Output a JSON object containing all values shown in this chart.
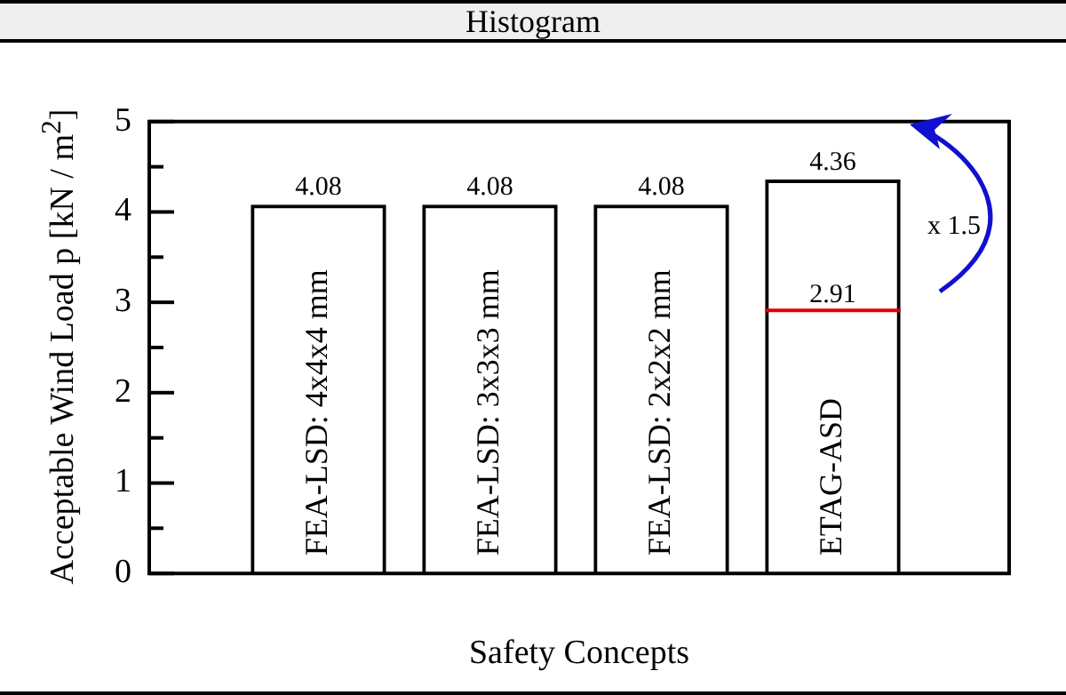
{
  "chart_data": {
    "type": "bar",
    "title": "Histogram",
    "xlabel": "Safety Concepts",
    "ylabel": "Acceptable Wind Load p [kN / m$^{2}$]",
    "categories": [
      "FEA-LSD: 4x4x4 mm",
      "FEA-LSD: 3x3x3 mm",
      "FEA-LSD: 2x2x2 mm",
      "ETAG-ASD"
    ],
    "values": [
      4.08,
      4.08,
      4.08,
      4.36
    ],
    "color": "#000000",
    "data_labels": true,
    "ylim": [
      0,
      5
    ],
    "yticks": [
      0,
      {
        "value": 0.5,
        "label": null
      },
      1,
      {
        "value": 1.5,
        "label": null
      },
      2,
      {
        "value": 2.5,
        "label": null
      },
      3,
      {
        "value": 3.5,
        "label": null
      },
      4,
      {
        "value": 4.5,
        "label": null
      },
      5
    ],
    "ref_lines": [
      {
        "axis": "y",
        "value": 2.91,
        "label": "2.91",
        "color": "#e00000"
      }
    ],
    "annotations": [
      "x 1.5"
    ],
    "grid": false,
    "legend": false
  }
}
